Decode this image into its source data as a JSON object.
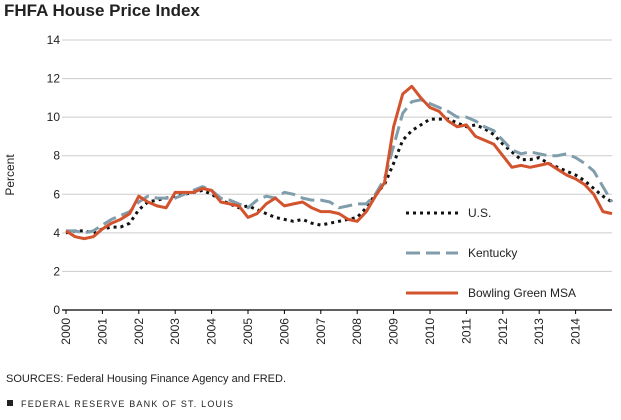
{
  "chart_data": {
    "type": "line",
    "title": "FHFA House Price Index",
    "y_label": "Percent",
    "source": "SOURCES: Federal Housing Finance Agency and FRED.",
    "footer": "FEDERAL RESERVE BANK OF ST. LOUIS",
    "x": [
      2000,
      2000.25,
      2000.5,
      2000.75,
      2001,
      2001.25,
      2001.5,
      2001.75,
      2002,
      2002.25,
      2002.5,
      2002.75,
      2003,
      2003.25,
      2003.5,
      2003.75,
      2004,
      2004.25,
      2004.5,
      2004.75,
      2005,
      2005.25,
      2005.5,
      2005.75,
      2006,
      2006.25,
      2006.5,
      2006.75,
      2007,
      2007.25,
      2007.5,
      2007.75,
      2008,
      2008.25,
      2008.5,
      2008.75,
      2009,
      2009.25,
      2009.5,
      2009.75,
      2010,
      2010.25,
      2010.5,
      2010.75,
      2011,
      2011.25,
      2011.5,
      2011.75,
      2012,
      2012.25,
      2012.5,
      2012.75,
      2013,
      2013.25,
      2013.5,
      2013.75,
      2014,
      2014.25,
      2014.5,
      2014.75,
      2015
    ],
    "series": [
      {
        "name": "U.S.",
        "color": "#111111",
        "dash": "3,4",
        "values": [
          4.0,
          4.1,
          4.1,
          4.0,
          4.2,
          4.3,
          4.3,
          4.5,
          5.2,
          5.6,
          5.7,
          5.8,
          5.9,
          6.0,
          6.1,
          6.2,
          6.0,
          5.7,
          5.5,
          5.3,
          5.4,
          5.2,
          5.0,
          4.8,
          4.7,
          4.6,
          4.7,
          4.5,
          4.4,
          4.5,
          4.6,
          4.7,
          4.8,
          5.3,
          6.0,
          6.5,
          7.6,
          8.8,
          9.3,
          9.6,
          9.9,
          9.9,
          9.9,
          9.7,
          9.5,
          9.6,
          9.4,
          9.1,
          8.6,
          8.2,
          7.8,
          7.8,
          7.9,
          7.6,
          7.4,
          7.2,
          7.0,
          6.7,
          6.3,
          5.9,
          5.6
        ]
      },
      {
        "name": "Kentucky",
        "color": "#7f9dab",
        "dash": "14,6",
        "values": [
          4.1,
          4.1,
          4.0,
          4.1,
          4.4,
          4.7,
          4.9,
          5.1,
          5.6,
          5.9,
          5.8,
          5.8,
          5.8,
          6.0,
          6.2,
          6.4,
          6.2,
          5.8,
          5.7,
          5.5,
          5.3,
          5.7,
          5.9,
          5.8,
          6.1,
          6.0,
          5.8,
          5.7,
          5.7,
          5.6,
          5.3,
          5.4,
          5.5,
          5.5,
          6.0,
          6.8,
          8.5,
          10.2,
          10.8,
          10.9,
          10.7,
          10.5,
          10.3,
          10.0,
          10.0,
          9.8,
          9.5,
          9.3,
          8.8,
          8.3,
          8.1,
          8.2,
          8.1,
          8.0,
          8.0,
          8.1,
          7.9,
          7.6,
          7.2,
          6.4,
          5.6
        ]
      },
      {
        "name": "Bowling Green MSA",
        "color": "#d2532d",
        "dash": "none",
        "values": [
          4.1,
          3.8,
          3.7,
          3.8,
          4.2,
          4.5,
          4.7,
          5.0,
          5.9,
          5.6,
          5.4,
          5.3,
          6.1,
          6.1,
          6.1,
          6.3,
          6.2,
          5.6,
          5.5,
          5.4,
          4.8,
          5.0,
          5.5,
          5.8,
          5.4,
          5.5,
          5.6,
          5.3,
          5.1,
          5.1,
          5.0,
          4.7,
          4.6,
          5.1,
          5.9,
          6.6,
          9.5,
          11.2,
          11.6,
          11.0,
          10.5,
          10.3,
          9.8,
          9.5,
          9.6,
          9.0,
          8.8,
          8.6,
          8.0,
          7.4,
          7.5,
          7.4,
          7.5,
          7.6,
          7.3,
          7.0,
          6.8,
          6.5,
          6.0,
          5.1,
          5.0
        ]
      }
    ],
    "xlim": [
      2000,
      2015
    ],
    "xticks": [
      2000,
      2001,
      2002,
      2003,
      2004,
      2005,
      2006,
      2007,
      2008,
      2009,
      2010,
      2011,
      2012,
      2013,
      2014
    ],
    "ylim": [
      0,
      14
    ],
    "yticks": [
      0,
      2,
      4,
      6,
      8,
      10,
      12,
      14
    ],
    "grid": true
  }
}
